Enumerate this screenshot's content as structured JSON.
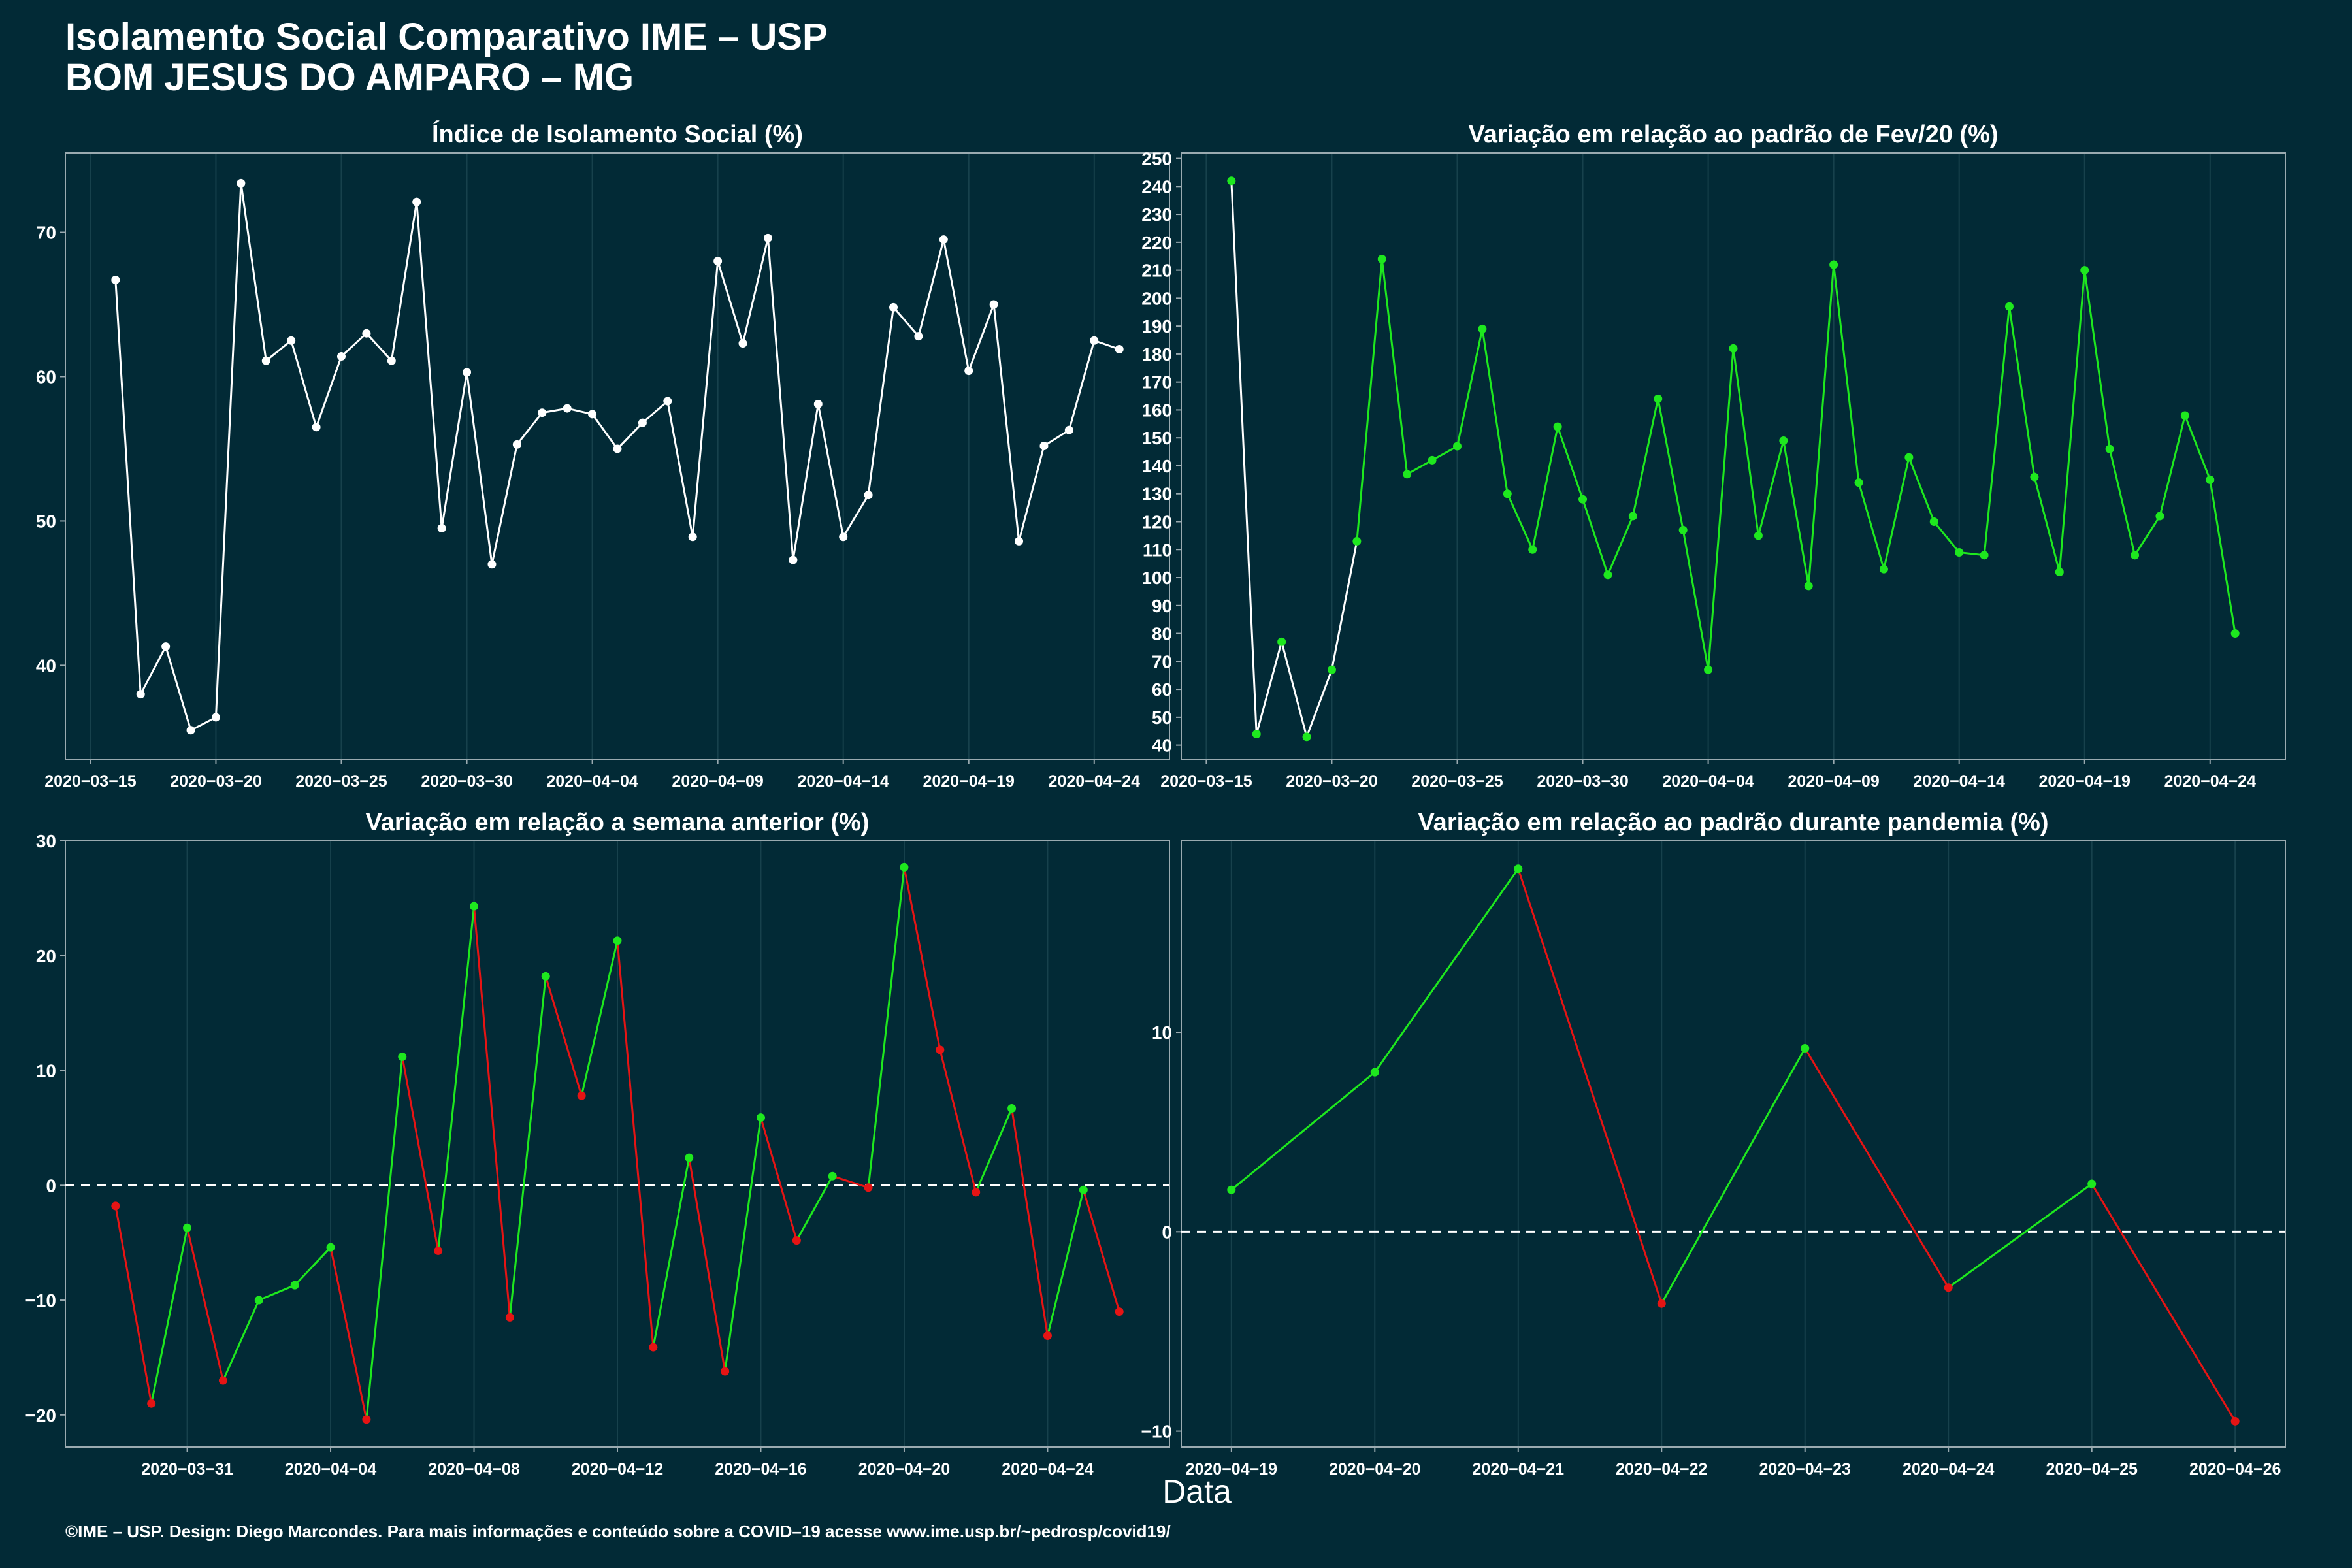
{
  "header": {
    "title_line1": "Isolamento Social Comparativo IME – USP",
    "title_line2": "BOM JESUS DO AMPARO – MG"
  },
  "footer": {
    "xlabel": "Data",
    "caption": "©IME – USP. Design: Diego Marcondes. Para mais informações e conteúdo sobre a COVID–19 acesse www.ime.usp.br/~pedrosp/covid19/"
  },
  "colors": {
    "background": "#022a36",
    "white": "#ffffff",
    "green": "#1ee81e",
    "red": "#e61414"
  },
  "chart_data": [
    {
      "type": "line",
      "title": "Índice de Isolamento Social (%)",
      "xlabel": "",
      "ylabel": "",
      "x_start": "2020-03-16",
      "x_end": "2020-04-26",
      "xlim": [
        "2020-03-14",
        "2020-04-27"
      ],
      "ylim": [
        33.5,
        75.5
      ],
      "yticks": [
        40,
        50,
        60,
        70
      ],
      "xticks": [
        "2020-03-15",
        "2020-03-20",
        "2020-03-25",
        "2020-03-30",
        "2020-04-04",
        "2020-04-09",
        "2020-04-14",
        "2020-04-19",
        "2020-04-24"
      ],
      "series": [
        {
          "color": "white",
          "values": [
            66.7,
            38.0,
            41.3,
            35.5,
            36.4,
            73.4,
            61.1,
            62.5,
            56.5,
            61.4,
            63.0,
            61.1,
            72.1,
            49.5,
            60.3,
            47.0,
            55.3,
            57.5,
            57.8,
            57.4,
            55.0,
            56.8,
            58.3,
            48.9,
            68.0,
            62.3,
            69.6,
            47.3,
            58.1,
            48.9,
            51.8,
            64.8,
            62.8,
            69.5,
            60.4,
            65.0,
            48.6,
            55.2,
            56.3,
            62.5,
            61.9
          ]
        }
      ]
    },
    {
      "type": "line",
      "title": "Variação em relação ao padrão de Fev/20 (%)",
      "xlabel": "",
      "ylabel": "",
      "x_start": "2020-03-16",
      "x_end": "2020-04-26",
      "xlim": [
        "2020-03-14",
        "2020-04-27"
      ],
      "ylim": [
        35,
        252
      ],
      "yticks": [
        40,
        50,
        60,
        70,
        80,
        90,
        100,
        110,
        120,
        130,
        140,
        150,
        160,
        170,
        180,
        190,
        200,
        210,
        220,
        230,
        240,
        250
      ],
      "xticks": [
        "2020-03-15",
        "2020-03-20",
        "2020-03-25",
        "2020-03-30",
        "2020-04-04",
        "2020-04-09",
        "2020-04-14",
        "2020-04-19",
        "2020-04-24"
      ],
      "series": [
        {
          "color": "green",
          "values": [
            242,
            44,
            77,
            43,
            67,
            113,
            214,
            137,
            142,
            147,
            189,
            130,
            110,
            154,
            128,
            101,
            122,
            164,
            117,
            67,
            182,
            115,
            149,
            97,
            212,
            134,
            103,
            143,
            120,
            109,
            108,
            197,
            136,
            102,
            210,
            146,
            108,
            122,
            158,
            135,
            80
          ]
        }
      ]
    },
    {
      "type": "line",
      "title": "Variação em relação a semana anterior (%)",
      "xlabel": "",
      "ylabel": "",
      "x_start": "2020-03-29",
      "x_end": "2020-04-26",
      "xlim": [
        "2020-03-27.6",
        "2020-04-27.4"
      ],
      "ylim": [
        -22.8,
        30
      ],
      "yticks": [
        -20,
        -10,
        0,
        10,
        20,
        30
      ],
      "xticks": [
        "2020-03-31",
        "2020-04-04",
        "2020-04-08",
        "2020-04-12",
        "2020-04-16",
        "2020-04-20",
        "2020-04-24"
      ],
      "reference_line": 0,
      "series": [
        {
          "color": "green_if_up_else_red",
          "values": [
            -1.8,
            -19.0,
            -3.7,
            -17.0,
            -10.0,
            -8.7,
            -5.4,
            -20.4,
            11.2,
            -5.7,
            24.3,
            -11.5,
            18.2,
            7.8,
            21.3,
            -14.1,
            2.4,
            -16.2,
            5.9,
            -4.8,
            0.8,
            -0.2,
            27.7,
            11.8,
            -0.6,
            6.7,
            -13.1,
            -0.4,
            -11.0
          ]
        }
      ]
    },
    {
      "type": "line",
      "title": "Variação em relação ao padrão durante pandemia (%)",
      "xlabel": "",
      "ylabel": "",
      "categories": [
        "2020-04-19",
        "2020-04-20",
        "2020-04-21",
        "2020-04-22",
        "2020-04-23",
        "2020-04-24",
        "2020-04-25",
        "2020-04-26"
      ],
      "ylim": [
        -10.8,
        19.6
      ],
      "yticks": [
        -10,
        0,
        10
      ],
      "reference_line": 0,
      "series": [
        {
          "color": "green_if_up_else_red",
          "values": [
            2.1,
            8.0,
            18.2,
            -3.6,
            9.2,
            -2.8,
            2.4,
            -9.5
          ]
        }
      ]
    }
  ]
}
